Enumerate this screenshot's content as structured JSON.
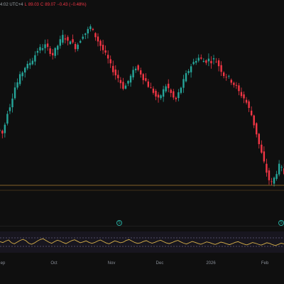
{
  "legend": {
    "time_fragment": "4:02 UTC+4",
    "low_label": "L",
    "low_value": "89.03",
    "close_label": "C",
    "close_value": "89.07",
    "change_text": "−0.43 (−0.48%)"
  },
  "time_axis": {
    "labels": [
      {
        "text": "ep"
      },
      {
        "text": "Oct"
      },
      {
        "text": "Nov"
      },
      {
        "text": "Dec"
      },
      {
        "text": "2026"
      },
      {
        "text": "Feb"
      }
    ]
  },
  "events": [
    {
      "symbol": "S"
    },
    {
      "symbol": "S"
    }
  ],
  "colors": {
    "up": "#26a69a",
    "down": "#f23645",
    "oscillator": "#d8b14a",
    "price_line": "#d49a3a",
    "background": "#0f0f0f"
  },
  "chart_data": {
    "type": "candlestick",
    "price_series_shape": [
      72,
      70,
      76,
      84,
      88,
      94,
      100,
      103,
      107,
      110,
      113,
      114,
      116,
      118,
      121,
      124,
      125,
      126,
      127,
      125,
      123,
      121,
      124,
      127,
      130,
      133,
      132,
      129,
      131,
      128,
      126,
      128,
      131,
      134,
      135,
      137,
      139,
      136,
      133,
      130,
      127,
      124,
      121,
      118,
      114,
      111,
      108,
      106,
      103,
      100,
      101,
      104,
      107,
      110,
      113,
      111,
      109,
      106,
      104,
      101,
      99,
      97,
      94,
      92,
      95,
      98,
      101,
      99,
      96,
      93,
      92,
      96,
      100,
      104,
      108,
      111,
      114,
      116,
      118,
      119,
      118,
      117,
      117,
      118,
      117,
      118,
      117,
      114,
      111,
      108,
      107,
      106,
      104,
      102,
      100,
      97,
      95,
      93,
      90,
      86,
      82,
      76,
      70,
      63,
      57,
      51,
      45,
      40,
      38,
      41,
      45,
      49,
      47,
      44
    ],
    "oscillator_series_shape": [
      52,
      48,
      55,
      60,
      47,
      42,
      50,
      58,
      63,
      57,
      45,
      40,
      46,
      55,
      62,
      66,
      58,
      50,
      44,
      52,
      59,
      55,
      48,
      43,
      50,
      57,
      61,
      54,
      47,
      51,
      56,
      49,
      44,
      48,
      55,
      60,
      53,
      46,
      42,
      49,
      56,
      52,
      47,
      50,
      58,
      62,
      55,
      48,
      44,
      47,
      53,
      57,
      50,
      45,
      49,
      55,
      59,
      52,
      46,
      43,
      48,
      54,
      58,
      51,
      45,
      41,
      47,
      53,
      49,
      44,
      40,
      45,
      51,
      48,
      43,
      39,
      44,
      50,
      47,
      42,
      38,
      43,
      49,
      52,
      46,
      41,
      37,
      42,
      48,
      45,
      40,
      36,
      41,
      47,
      44,
      38,
      34,
      39,
      45,
      42
    ],
    "oscillator_band": {
      "upper": 70,
      "lower": 30
    }
  }
}
